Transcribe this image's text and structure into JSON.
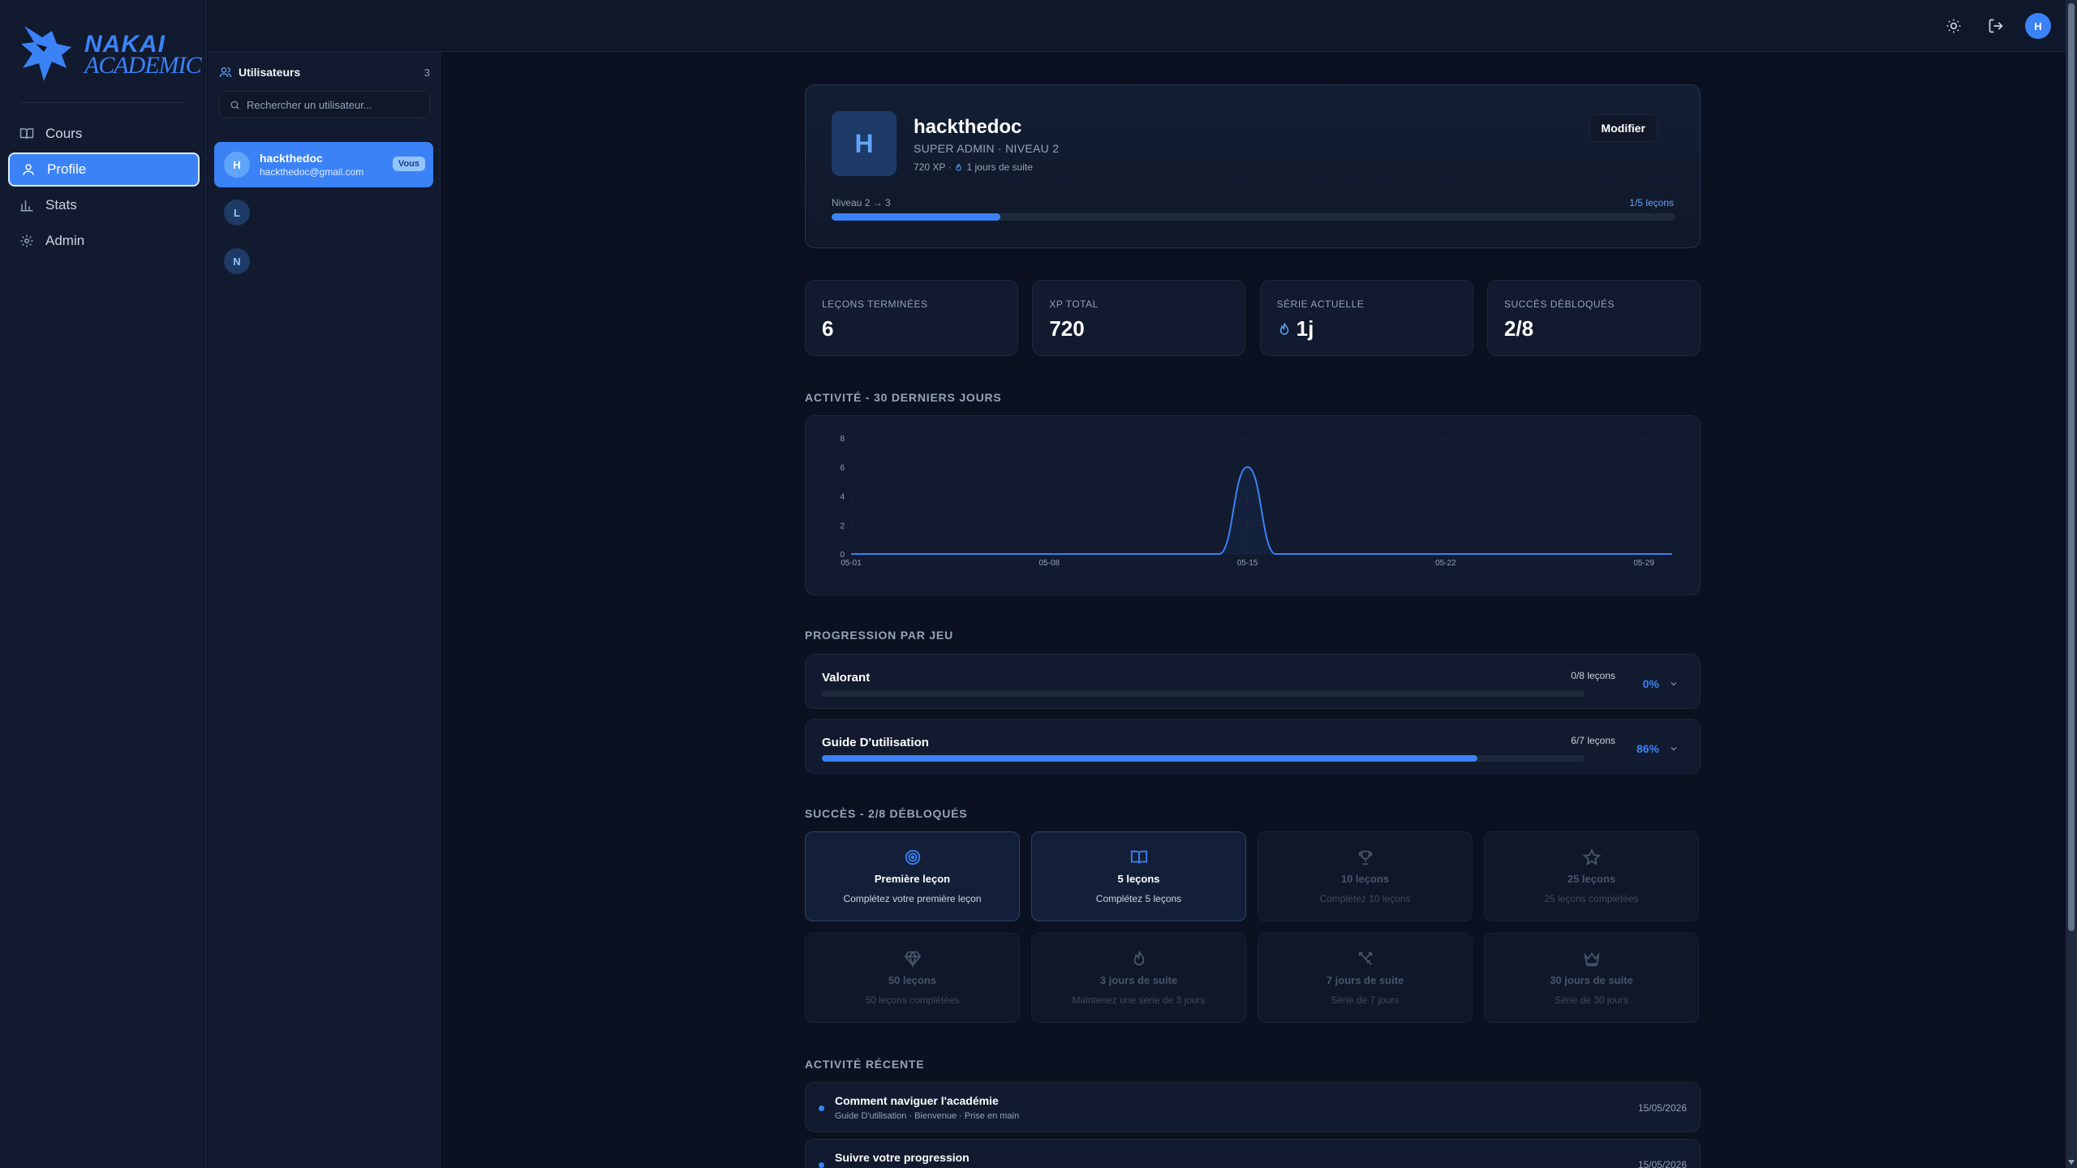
{
  "brand": {
    "line1": "NAKAI",
    "line2": "ACADEMIC",
    "accent": "#3b82f6"
  },
  "nav": [
    {
      "label": "Cours",
      "icon": "book-icon"
    },
    {
      "label": "Profile",
      "icon": "user-icon",
      "active": true
    },
    {
      "label": "Stats",
      "icon": "bar-chart-icon"
    },
    {
      "label": "Admin",
      "icon": "gear-icon"
    }
  ],
  "users_panel": {
    "title": "Utilisateurs",
    "count": "3",
    "search_placeholder": "Rechercher un utilisateur...",
    "users": [
      {
        "initial": "H",
        "name": "hackthedoc",
        "email": "hackthedoc@gmail.com",
        "badge": "Vous",
        "active": true
      },
      {
        "initial": "L"
      },
      {
        "initial": "N"
      }
    ]
  },
  "topbar": {
    "avatar_initial": "H"
  },
  "profile": {
    "initial": "H",
    "name": "hackthedoc",
    "role": "SUPER ADMIN · NIVEAU 2",
    "xp": "720 XP ·",
    "streak": "1 jours de suite",
    "modify_label": "Modifier",
    "level_label": "Niveau 2 → 3",
    "level_progress_label": "1/5 leçons",
    "level_progress": 0.2
  },
  "stats": [
    {
      "label": "Leçons terminées",
      "value": "6"
    },
    {
      "label": "XP total",
      "value": "720"
    },
    {
      "label": "Série actuelle",
      "value": "1j",
      "icon": "flame-icon"
    },
    {
      "label": "Succès débloqués",
      "value": "2/8"
    }
  ],
  "activity_title": "Activité - 30 derniers jours",
  "chart_data": {
    "type": "area",
    "x_ticks": [
      "05-01",
      "05-08",
      "05-15",
      "05-22",
      "05-29"
    ],
    "y_ticks": [
      0,
      2,
      4,
      6,
      8
    ],
    "ylim": [
      0,
      8
    ],
    "x_range": [
      1,
      30
    ],
    "series": [
      {
        "x": [
          1,
          2,
          3,
          4,
          5,
          6,
          7,
          8,
          9,
          10,
          11,
          12,
          13,
          14,
          15,
          16,
          17,
          18,
          19,
          20,
          21,
          22,
          23,
          24,
          25,
          26,
          27,
          28,
          29,
          30
        ],
        "y": [
          0,
          0,
          0,
          0,
          0,
          0,
          0,
          0,
          0,
          0,
          0,
          0,
          0,
          0,
          6,
          0,
          0,
          0,
          0,
          0,
          0,
          0,
          0,
          0,
          0,
          0,
          0,
          0,
          0,
          0
        ]
      }
    ],
    "grid": true,
    "line_color": "#3b82f6"
  },
  "games_title": "Progression par jeu",
  "games": [
    {
      "name": "Valorant",
      "count": "0/8 leçons",
      "pct": "0%",
      "progress": 0
    },
    {
      "name": "Guide D'utilisation",
      "count": "6/7 leçons",
      "pct": "86%",
      "progress": 0.86
    }
  ],
  "achievements_title": "Succès - 2/8 débloqués",
  "achievements": [
    {
      "title": "Première leçon",
      "desc": "Complétez votre première leçon",
      "icon": "target-icon",
      "unlocked": true
    },
    {
      "title": "5 leçons",
      "desc": "Complétez 5 leçons",
      "icon": "open-book-icon",
      "unlocked": true
    },
    {
      "title": "10 leçons",
      "desc": "Complétez 10 leçons",
      "icon": "trophy-icon",
      "unlocked": false
    },
    {
      "title": "25 leçons",
      "desc": "25 leçons complétées",
      "icon": "star-icon",
      "unlocked": false
    },
    {
      "title": "50 leçons",
      "desc": "50 leçons complétées",
      "icon": "diamond-icon",
      "unlocked": false
    },
    {
      "title": "3 jours de suite",
      "desc": "Maintenez une série de 3 jours",
      "icon": "flame-icon",
      "unlocked": false
    },
    {
      "title": "7 jours de suite",
      "desc": "Série de 7 jours",
      "icon": "swords-icon",
      "unlocked": false
    },
    {
      "title": "30 jours de suite",
      "desc": "Série de 30 jours",
      "icon": "crown-icon",
      "unlocked": false
    }
  ],
  "recent_title": "Activité récente",
  "recent": [
    {
      "title": "Comment naviguer l'académie",
      "sub": "Guide D'utilisation · Bienvenue · Prise en main",
      "date": "15/05/2026"
    },
    {
      "title": "Suivre votre progression",
      "sub": "",
      "date": "15/05/2026"
    }
  ]
}
